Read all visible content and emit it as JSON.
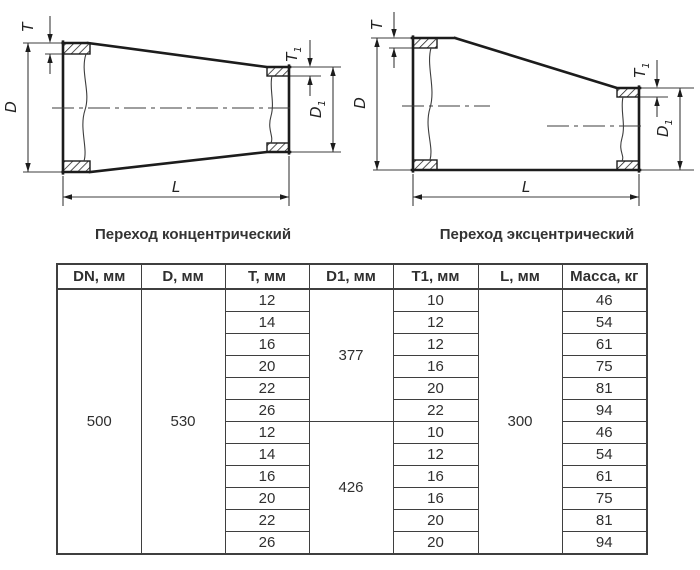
{
  "drawings": {
    "concentric_caption": "Переход концентрический",
    "eccentric_caption": "Переход эксцентрический",
    "dim_labels": {
      "t": "T",
      "d": "D",
      "t1_base": "T",
      "t1_sub": "1",
      "d1_base": "D",
      "d1_sub": "1",
      "l": "L"
    }
  },
  "table": {
    "headers": [
      "DN, мм",
      "D, мм",
      "T, мм",
      "D1, мм",
      "T1, мм",
      "L, мм",
      "Масса, кг"
    ],
    "dn": "500",
    "d": "530",
    "l": "300",
    "groups": [
      {
        "d1": "377",
        "rows": [
          {
            "t": "12",
            "t1": "10",
            "mass": "46"
          },
          {
            "t": "14",
            "t1": "12",
            "mass": "54"
          },
          {
            "t": "16",
            "t1": "12",
            "mass": "61"
          },
          {
            "t": "20",
            "t1": "16",
            "mass": "75"
          },
          {
            "t": "22",
            "t1": "20",
            "mass": "81"
          },
          {
            "t": "26",
            "t1": "22",
            "mass": "94"
          }
        ]
      },
      {
        "d1": "426",
        "rows": [
          {
            "t": "12",
            "t1": "10",
            "mass": "46"
          },
          {
            "t": "14",
            "t1": "12",
            "mass": "54"
          },
          {
            "t": "16",
            "t1": "16",
            "mass": "61"
          },
          {
            "t": "20",
            "t1": "16",
            "mass": "75"
          },
          {
            "t": "22",
            "t1": "20",
            "mass": "81"
          },
          {
            "t": "26",
            "t1": "20",
            "mass": "94"
          }
        ]
      }
    ]
  }
}
